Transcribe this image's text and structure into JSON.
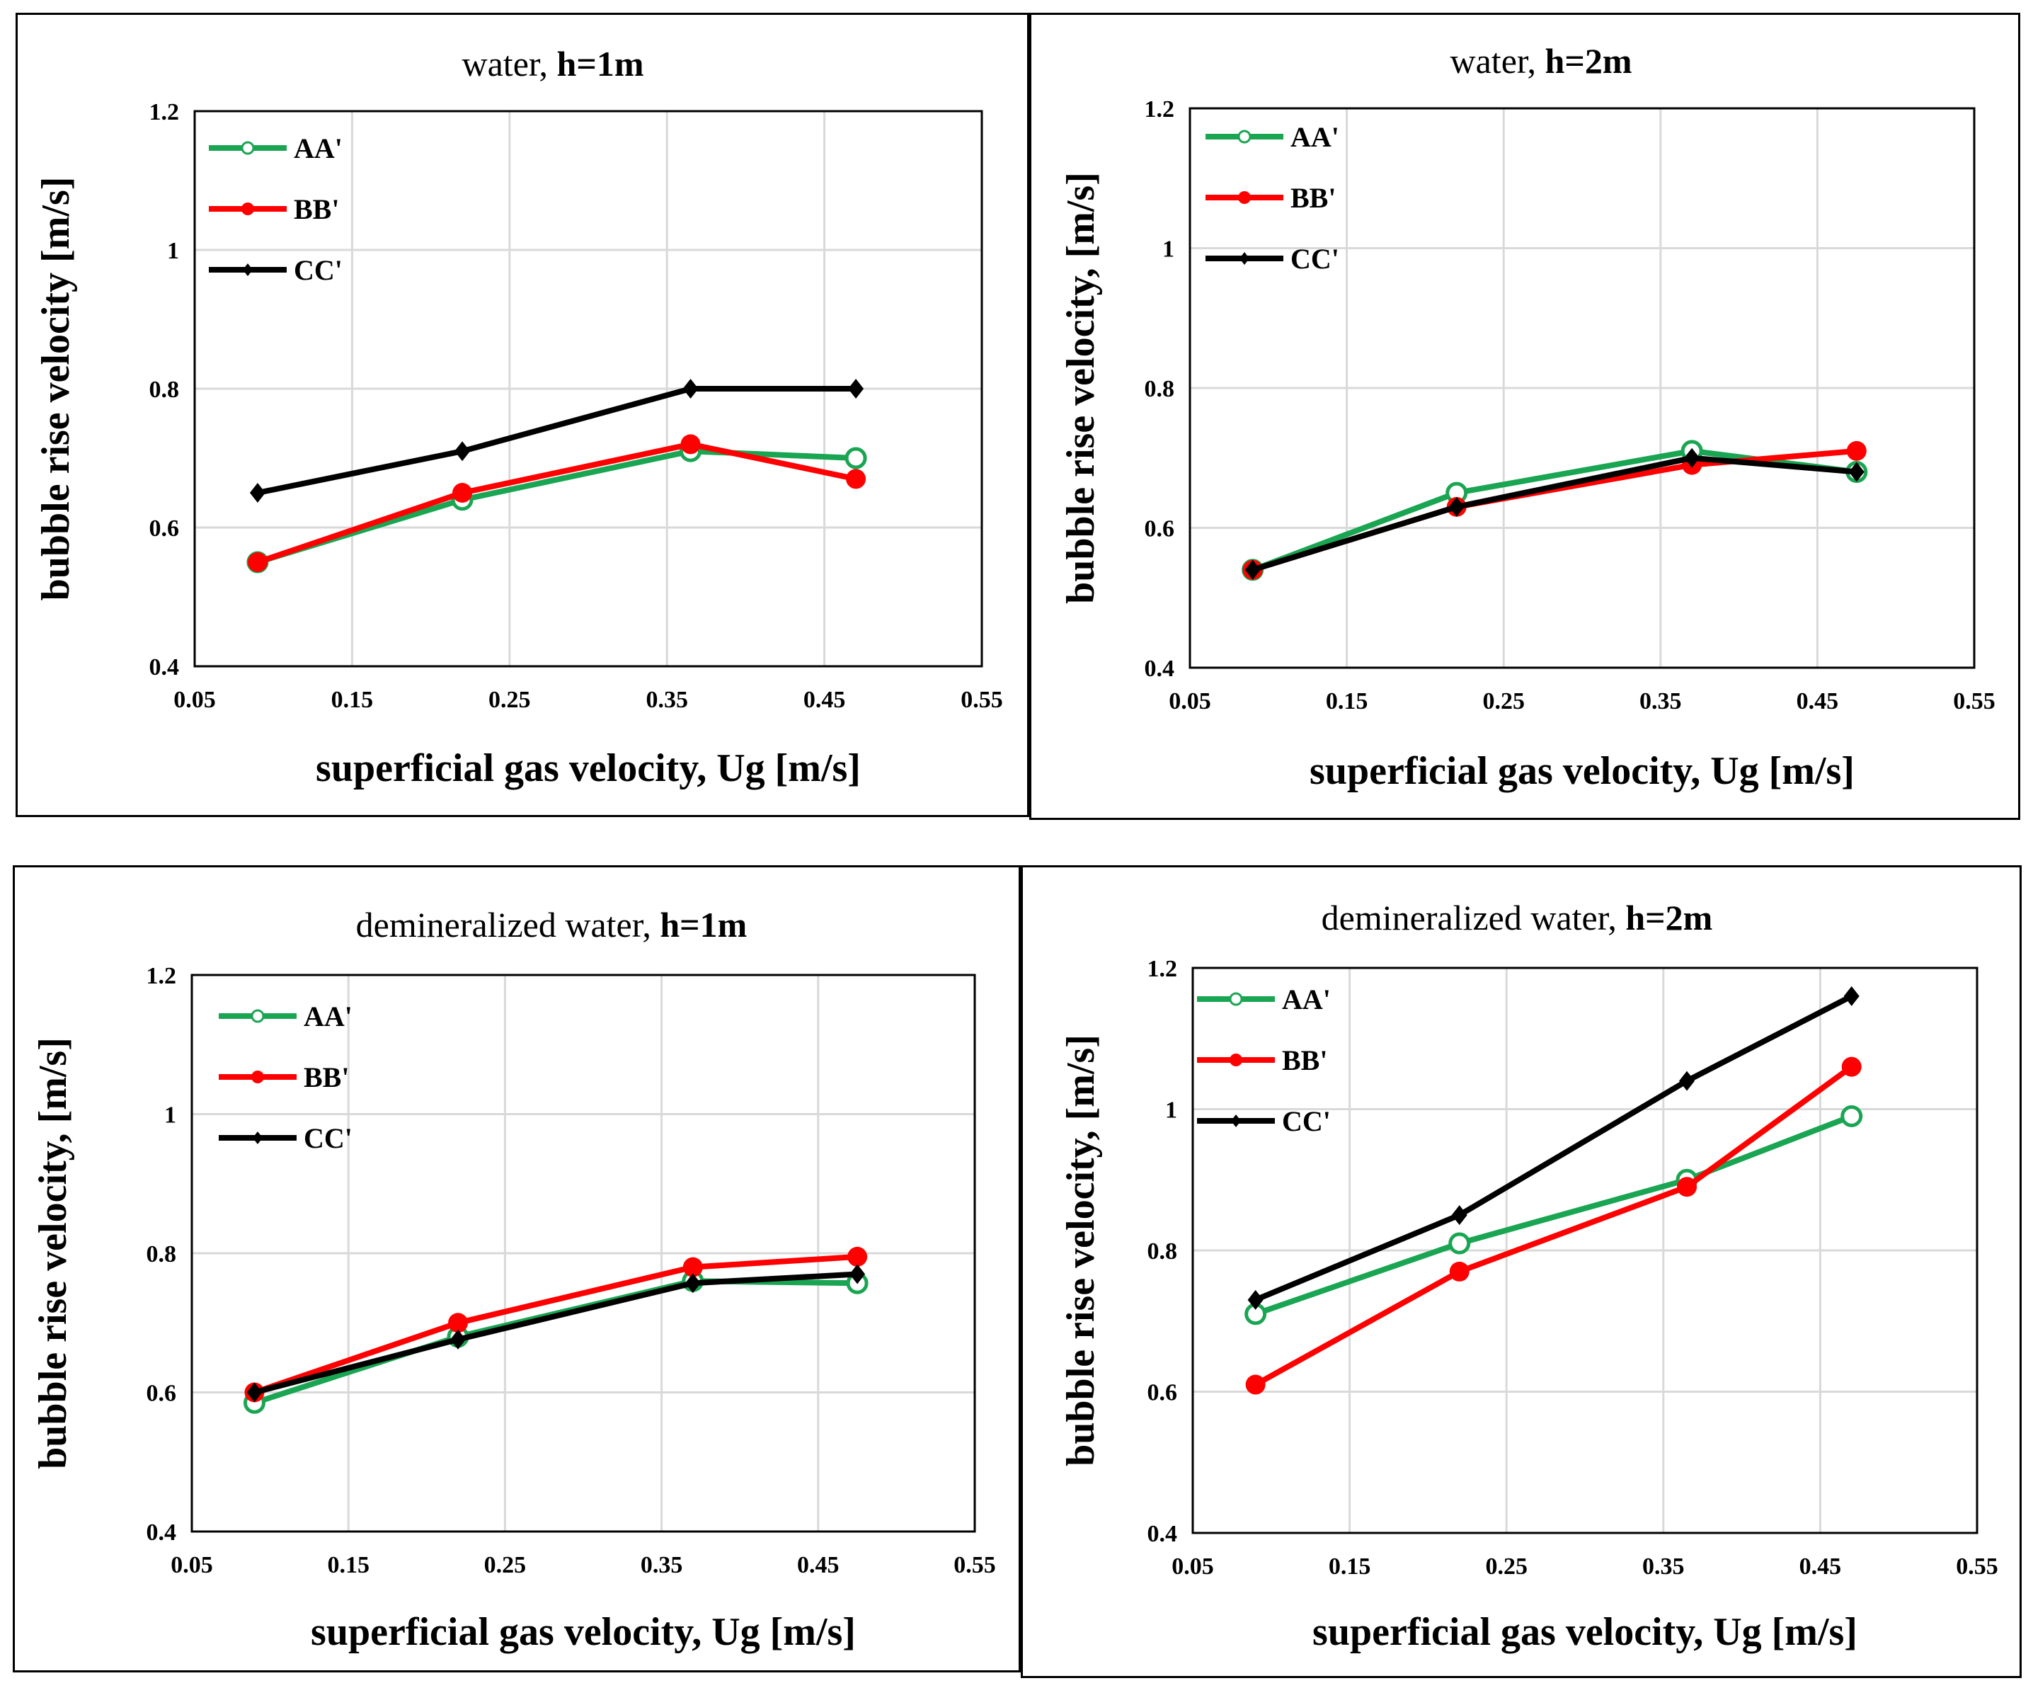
{
  "colors": {
    "AA": "#1aa553",
    "BB": "#ff0000",
    "CC": "#000000"
  },
  "chart_data": [
    {
      "type": "line",
      "title_prefix": "water, ",
      "title_bold": "h=1m",
      "xlabel": "superficial gas velocity, Ug [m/s]",
      "ylabel": "bubble rise velocity [m/s]",
      "xlim": [
        0.05,
        0.55
      ],
      "ylim": [
        0.4,
        1.2
      ],
      "xticks": [
        "0.05",
        "0.15",
        "0.25",
        "0.35",
        "0.45",
        "0.55"
      ],
      "yticks": [
        "0.4",
        "0.6",
        "0.8",
        "1",
        "1.2"
      ],
      "legend_position": "top-left",
      "series": [
        {
          "name": "AA'",
          "key": "AA",
          "x": [
            0.09,
            0.22,
            0.365,
            0.47
          ],
          "values": [
            0.55,
            0.64,
            0.71,
            0.7
          ]
        },
        {
          "name": "BB'",
          "key": "BB",
          "x": [
            0.09,
            0.22,
            0.365,
            0.47
          ],
          "values": [
            0.55,
            0.65,
            0.72,
            0.67
          ]
        },
        {
          "name": "CC'",
          "key": "CC",
          "x": [
            0.09,
            0.22,
            0.365,
            0.47
          ],
          "values": [
            0.65,
            0.71,
            0.8,
            0.8
          ]
        }
      ]
    },
    {
      "type": "line",
      "title_prefix": "water, ",
      "title_bold": "h=2m",
      "xlabel": "superficial gas velocity, Ug [m/s]",
      "ylabel": "bubble rise velocity, [m/s]",
      "xlim": [
        0.05,
        0.55
      ],
      "ylim": [
        0.4,
        1.2
      ],
      "xticks": [
        "0.05",
        "0.15",
        "0.25",
        "0.35",
        "0.45",
        "0.55"
      ],
      "yticks": [
        "0.4",
        "0.6",
        "0.8",
        "1",
        "1.2"
      ],
      "legend_position": "top-left",
      "series": [
        {
          "name": "AA'",
          "key": "AA",
          "x": [
            0.09,
            0.22,
            0.37,
            0.475
          ],
          "values": [
            0.54,
            0.65,
            0.71,
            0.68
          ]
        },
        {
          "name": "BB'",
          "key": "BB",
          "x": [
            0.09,
            0.22,
            0.37,
            0.475
          ],
          "values": [
            0.54,
            0.63,
            0.69,
            0.71
          ]
        },
        {
          "name": "CC'",
          "key": "CC",
          "x": [
            0.09,
            0.22,
            0.37,
            0.475
          ],
          "values": [
            0.54,
            0.63,
            0.7,
            0.68
          ]
        }
      ]
    },
    {
      "type": "line",
      "title_prefix": "demineralized water, ",
      "title_bold": "h=1m",
      "xlabel": "superficial gas velocity, Ug [m/s]",
      "ylabel": "bubble rise velocity, [m/s]",
      "xlim": [
        0.05,
        0.55
      ],
      "ylim": [
        0.4,
        1.2
      ],
      "xticks": [
        "0.05",
        "0.15",
        "0.25",
        "0.35",
        "0.45",
        "0.55"
      ],
      "yticks": [
        "0.4",
        "0.6",
        "0.8",
        "1",
        "1.2"
      ],
      "legend_position": "top-left",
      "series": [
        {
          "name": "AA'",
          "key": "AA",
          "x": [
            0.09,
            0.22,
            0.37,
            0.475
          ],
          "values": [
            0.585,
            0.68,
            0.76,
            0.757
          ]
        },
        {
          "name": "BB'",
          "key": "BB",
          "x": [
            0.09,
            0.22,
            0.37,
            0.475
          ],
          "values": [
            0.6,
            0.7,
            0.78,
            0.795
          ]
        },
        {
          "name": "CC'",
          "key": "CC",
          "x": [
            0.09,
            0.22,
            0.37,
            0.475
          ],
          "values": [
            0.6,
            0.676,
            0.757,
            0.77
          ]
        }
      ]
    },
    {
      "type": "line",
      "title_prefix": "demineralized water, ",
      "title_bold": "h=2m",
      "xlabel": "superficial gas velocity, Ug [m/s]",
      "ylabel": "bubble rise velocity, [m/s]",
      "xlim": [
        0.05,
        0.55
      ],
      "ylim": [
        0.4,
        1.2
      ],
      "xticks": [
        "0.05",
        "0.15",
        "0.25",
        "0.35",
        "0.45",
        "0.55"
      ],
      "yticks": [
        "0.4",
        "0.6",
        "0.8",
        "1",
        "1.2"
      ],
      "legend_position": "top-left",
      "series": [
        {
          "name": "AA'",
          "key": "AA",
          "x": [
            0.09,
            0.22,
            0.365,
            0.47
          ],
          "values": [
            0.71,
            0.81,
            0.9,
            0.99
          ]
        },
        {
          "name": "BB'",
          "key": "BB",
          "x": [
            0.09,
            0.22,
            0.365,
            0.47
          ],
          "values": [
            0.61,
            0.77,
            0.89,
            1.06
          ]
        },
        {
          "name": "CC'",
          "key": "CC",
          "x": [
            0.09,
            0.22,
            0.365,
            0.47
          ],
          "values": [
            0.73,
            0.85,
            1.04,
            1.16
          ]
        }
      ]
    }
  ]
}
